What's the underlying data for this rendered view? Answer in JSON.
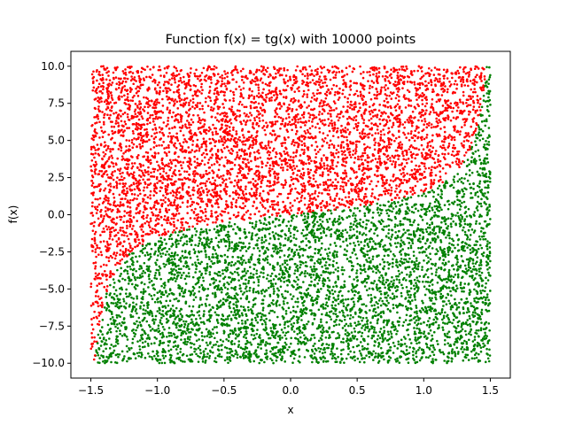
{
  "chart_data": {
    "type": "scatter",
    "title": "Function f(x) = tg(x) with 10000 points",
    "xlabel": "x",
    "ylabel": "f(x)",
    "xlim": [
      -1.65,
      1.65
    ],
    "ylim": [
      -11.0,
      11.0
    ],
    "x_ticks": [
      -1.5,
      -1.0,
      -0.5,
      0.0,
      0.5,
      1.0,
      1.5
    ],
    "x_tick_labels": [
      "−1.5",
      "−1.0",
      "−0.5",
      "0.0",
      "0.5",
      "1.0",
      "1.5"
    ],
    "y_ticks": [
      -10.0,
      -7.5,
      -5.0,
      -2.5,
      0.0,
      2.5,
      5.0,
      7.5,
      10.0
    ],
    "y_tick_labels": [
      "−10.0",
      "−7.5",
      "−5.0",
      "−2.5",
      "0.0",
      "2.5",
      "5.0",
      "7.5",
      "10.0"
    ],
    "grid": false,
    "legend": "none",
    "point_count": 10000,
    "sampling_region": {
      "x": [
        -1.5,
        1.5
      ],
      "y": [
        -10.0,
        10.0
      ]
    },
    "boundary_function": "tan(x)",
    "series": [
      {
        "rule": "y > tan(x)",
        "color": "#ff0000"
      },
      {
        "rule": "y <= tan(x)",
        "color": "#008000"
      }
    ],
    "frame_color": "#000000"
  }
}
